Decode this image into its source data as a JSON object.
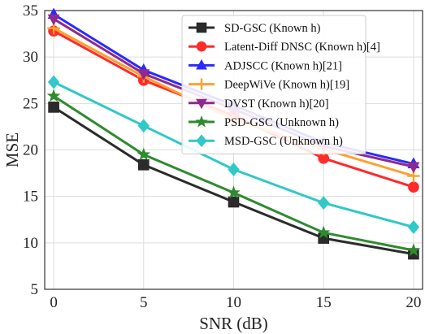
{
  "chart_data": {
    "type": "line",
    "xlabel": "SNR (dB)",
    "ylabel": "MSE",
    "x": [
      0,
      5,
      10,
      15,
      20
    ],
    "xticks": [
      0,
      5,
      10,
      15,
      20
    ],
    "yticks": [
      5,
      10,
      15,
      20,
      25,
      30,
      35
    ],
    "xlim": [
      -0.5,
      20.5
    ],
    "ylim": [
      5,
      35
    ],
    "grid": true,
    "legend_position": "top-right",
    "series": [
      {
        "name": "SD-GSC (Known h)",
        "color": "#2b2b2b",
        "marker": "square",
        "values": [
          24.6,
          18.4,
          14.4,
          10.5,
          8.8
        ]
      },
      {
        "name": "Latent-Diff DNSC (Known h)[4]",
        "color": "#ff2a2a",
        "marker": "circle",
        "values": [
          32.8,
          27.5,
          23.7,
          19.1,
          16.0
        ]
      },
      {
        "name": "ADJSCC (Known h)[21]",
        "color": "#2a2aff",
        "marker": "triangle-up",
        "values": [
          34.6,
          28.6,
          24.8,
          20.8,
          18.5
        ]
      },
      {
        "name": "DeepWiVe (Known h)[19]",
        "color": "#ffa030",
        "marker": "plus",
        "values": [
          33.1,
          27.9,
          23.3,
          20.1,
          17.2
        ]
      },
      {
        "name": "DVST (Known h)[20]",
        "color": "#8e2a8e",
        "marker": "triangle-down",
        "values": [
          34.1,
          28.2,
          24.4,
          20.4,
          18.2
        ]
      },
      {
        "name": "PSD-GSC (Unknown h)",
        "color": "#2e8b2e",
        "marker": "star",
        "values": [
          25.8,
          19.5,
          15.4,
          11.1,
          9.2
        ]
      },
      {
        "name": "MSD-GSC (Unknown h)",
        "color": "#30c8c8",
        "marker": "diamond",
        "values": [
          27.3,
          22.6,
          17.9,
          14.3,
          11.7
        ]
      }
    ]
  }
}
